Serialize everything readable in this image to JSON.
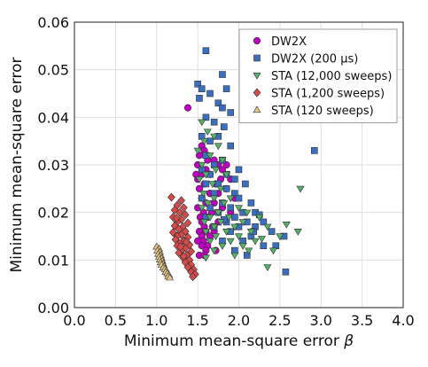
{
  "chart_data": {
    "type": "scatter",
    "title": "",
    "xlabel": "Minimum mean-square error",
    "xlabel_symbol": "β",
    "ylabel": "Minimum mean-square error",
    "xlim": [
      0.0,
      4.0
    ],
    "ylim": [
      0.0,
      0.06
    ],
    "x_ticks": [
      "0.0",
      "0.5",
      "1.0",
      "1.5",
      "2.0",
      "2.5",
      "3.0",
      "3.5",
      "4.0"
    ],
    "y_ticks": [
      "0.00",
      "0.01",
      "0.02",
      "0.03",
      "0.04",
      "0.05",
      "0.06"
    ],
    "grid": true,
    "legend_position": "top-right",
    "series": [
      {
        "name": "DW2X",
        "marker": "circle",
        "color": "#c000c0",
        "points": [
          [
            1.38,
            0.042
          ],
          [
            1.55,
            0.034
          ],
          [
            1.58,
            0.033
          ],
          [
            1.52,
            0.032
          ],
          [
            1.62,
            0.031
          ],
          [
            1.7,
            0.031
          ],
          [
            1.75,
            0.03
          ],
          [
            1.5,
            0.03
          ],
          [
            1.6,
            0.029
          ],
          [
            1.8,
            0.029
          ],
          [
            1.55,
            0.028
          ],
          [
            1.65,
            0.028
          ],
          [
            1.9,
            0.027
          ],
          [
            1.5,
            0.027
          ],
          [
            1.72,
            0.026
          ],
          [
            1.58,
            0.026
          ],
          [
            1.85,
            0.025
          ],
          [
            1.52,
            0.025
          ],
          [
            1.65,
            0.024
          ],
          [
            1.75,
            0.024
          ],
          [
            1.55,
            0.023
          ],
          [
            1.95,
            0.023
          ],
          [
            1.6,
            0.022
          ],
          [
            1.7,
            0.022
          ],
          [
            1.5,
            0.021
          ],
          [
            1.8,
            0.021
          ],
          [
            1.57,
            0.02
          ],
          [
            1.67,
            0.02
          ],
          [
            1.9,
            0.02
          ],
          [
            1.53,
            0.019
          ],
          [
            1.62,
            0.019
          ],
          [
            1.75,
            0.018
          ],
          [
            1.55,
            0.018
          ],
          [
            1.58,
            0.017
          ],
          [
            1.68,
            0.017
          ],
          [
            1.52,
            0.016
          ],
          [
            1.6,
            0.016
          ],
          [
            1.7,
            0.016
          ],
          [
            1.55,
            0.015
          ],
          [
            1.65,
            0.015
          ],
          [
            1.57,
            0.014
          ],
          [
            1.5,
            0.014
          ],
          [
            1.62,
            0.013
          ],
          [
            1.55,
            0.013
          ],
          [
            1.72,
            0.012
          ],
          [
            1.6,
            0.012
          ],
          [
            1.52,
            0.011
          ],
          [
            1.58,
            0.011
          ],
          [
            1.65,
            0.024
          ],
          [
            1.85,
            0.03
          ],
          [
            1.48,
            0.028
          ],
          [
            1.78,
            0.027
          ]
        ]
      },
      {
        "name": "DW2X (200 μs)",
        "marker": "square",
        "color": "#3a6fc0",
        "points": [
          [
            1.6,
            0.054
          ],
          [
            1.8,
            0.049
          ],
          [
            1.5,
            0.047
          ],
          [
            1.55,
            0.046
          ],
          [
            1.85,
            0.046
          ],
          [
            1.65,
            0.045
          ],
          [
            1.52,
            0.044
          ],
          [
            1.75,
            0.043
          ],
          [
            1.8,
            0.042
          ],
          [
            1.9,
            0.041
          ],
          [
            2.1,
            0.041
          ],
          [
            1.6,
            0.04
          ],
          [
            1.7,
            0.039
          ],
          [
            1.82,
            0.038
          ],
          [
            1.55,
            0.036
          ],
          [
            1.75,
            0.036
          ],
          [
            1.65,
            0.035
          ],
          [
            1.9,
            0.034
          ],
          [
            2.92,
            0.033
          ],
          [
            1.6,
            0.032
          ],
          [
            1.8,
            0.031
          ],
          [
            1.7,
            0.03
          ],
          [
            2.0,
            0.029
          ],
          [
            1.55,
            0.029
          ],
          [
            1.85,
            0.028
          ],
          [
            1.65,
            0.028
          ],
          [
            1.95,
            0.027
          ],
          [
            1.75,
            0.026
          ],
          [
            1.6,
            0.026
          ],
          [
            1.85,
            0.025
          ],
          [
            1.7,
            0.024
          ],
          [
            1.95,
            0.024
          ],
          [
            1.55,
            0.023
          ],
          [
            2.0,
            0.023
          ],
          [
            1.8,
            0.022
          ],
          [
            2.15,
            0.022
          ],
          [
            1.65,
            0.021
          ],
          [
            1.9,
            0.021
          ],
          [
            2.05,
            0.02
          ],
          [
            1.75,
            0.02
          ],
          [
            2.2,
            0.02
          ],
          [
            1.6,
            0.019
          ],
          [
            1.95,
            0.019
          ],
          [
            2.1,
            0.018
          ],
          [
            1.85,
            0.018
          ],
          [
            2.3,
            0.018
          ],
          [
            2.0,
            0.017
          ],
          [
            2.2,
            0.017
          ],
          [
            1.7,
            0.017
          ],
          [
            2.4,
            0.016
          ],
          [
            1.9,
            0.016
          ],
          [
            2.15,
            0.015
          ],
          [
            2.55,
            0.015
          ],
          [
            2.05,
            0.014
          ],
          [
            1.8,
            0.014
          ],
          [
            2.3,
            0.013
          ],
          [
            2.45,
            0.013
          ],
          [
            1.95,
            0.012
          ],
          [
            2.1,
            0.011
          ],
          [
            2.57,
            0.0075
          ],
          [
            1.82,
            0.0185
          ],
          [
            2.25,
            0.0195
          ],
          [
            2.18,
            0.016
          ],
          [
            2.08,
            0.026
          ]
        ]
      },
      {
        "name": "STA (12,000 sweeps)",
        "marker": "triangle-down",
        "color": "#55b068",
        "points": [
          [
            1.55,
            0.039
          ],
          [
            1.62,
            0.037
          ],
          [
            1.7,
            0.036
          ],
          [
            1.58,
            0.035
          ],
          [
            1.75,
            0.034
          ],
          [
            1.5,
            0.033
          ],
          [
            1.65,
            0.032
          ],
          [
            1.8,
            0.031
          ],
          [
            1.55,
            0.03
          ],
          [
            1.72,
            0.029
          ],
          [
            1.6,
            0.028
          ],
          [
            1.85,
            0.028
          ],
          [
            1.52,
            0.027
          ],
          [
            1.68,
            0.026
          ],
          [
            1.78,
            0.025
          ],
          [
            2.75,
            0.025
          ],
          [
            1.57,
            0.024
          ],
          [
            1.7,
            0.023
          ],
          [
            1.9,
            0.023
          ],
          [
            1.62,
            0.022
          ],
          [
            1.82,
            0.022
          ],
          [
            2.0,
            0.021
          ],
          [
            1.55,
            0.021
          ],
          [
            1.75,
            0.02
          ],
          [
            2.1,
            0.02
          ],
          [
            1.65,
            0.019
          ],
          [
            1.88,
            0.019
          ],
          [
            2.25,
            0.019
          ],
          [
            1.58,
            0.018
          ],
          [
            1.78,
            0.018
          ],
          [
            2.05,
            0.018
          ],
          [
            1.7,
            0.017
          ],
          [
            1.95,
            0.017
          ],
          [
            2.35,
            0.017
          ],
          [
            1.6,
            0.016
          ],
          [
            1.85,
            0.016
          ],
          [
            2.15,
            0.016
          ],
          [
            2.58,
            0.0175
          ],
          [
            1.72,
            0.015
          ],
          [
            2.0,
            0.015
          ],
          [
            2.5,
            0.015
          ],
          [
            2.72,
            0.016
          ],
          [
            1.65,
            0.014
          ],
          [
            1.9,
            0.014
          ],
          [
            2.2,
            0.014
          ],
          [
            1.8,
            0.013
          ],
          [
            2.05,
            0.013
          ],
          [
            2.42,
            0.012
          ],
          [
            1.7,
            0.012
          ],
          [
            1.95,
            0.011
          ],
          [
            2.35,
            0.0085
          ],
          [
            1.6,
            0.0105
          ],
          [
            2.12,
            0.012
          ],
          [
            2.28,
            0.0145
          ]
        ]
      },
      {
        "name": "STA (1,200 sweeps)",
        "marker": "diamond",
        "color": "#d64a4a",
        "points": [
          [
            1.18,
            0.0232
          ],
          [
            1.3,
            0.0225
          ],
          [
            1.25,
            0.0215
          ],
          [
            1.33,
            0.021
          ],
          [
            1.22,
            0.0205
          ],
          [
            1.28,
            0.02
          ],
          [
            1.35,
            0.0195
          ],
          [
            1.2,
            0.019
          ],
          [
            1.3,
            0.0185
          ],
          [
            1.25,
            0.018
          ],
          [
            1.38,
            0.0178
          ],
          [
            1.22,
            0.0172
          ],
          [
            1.32,
            0.017
          ],
          [
            1.27,
            0.0165
          ],
          [
            1.35,
            0.016
          ],
          [
            1.2,
            0.0158
          ],
          [
            1.3,
            0.0153
          ],
          [
            1.25,
            0.015
          ],
          [
            1.38,
            0.0148
          ],
          [
            1.23,
            0.0143
          ],
          [
            1.33,
            0.014
          ],
          [
            1.28,
            0.0135
          ],
          [
            1.4,
            0.0132
          ],
          [
            1.25,
            0.013
          ],
          [
            1.35,
            0.0125
          ],
          [
            1.3,
            0.012
          ],
          [
            1.42,
            0.0118
          ],
          [
            1.27,
            0.0115
          ],
          [
            1.37,
            0.011
          ],
          [
            1.32,
            0.0105
          ],
          [
            1.4,
            0.01
          ],
          [
            1.35,
            0.0095
          ],
          [
            1.42,
            0.009
          ],
          [
            1.38,
            0.0085
          ],
          [
            1.45,
            0.008
          ],
          [
            1.42,
            0.0075
          ],
          [
            1.47,
            0.007
          ],
          [
            1.44,
            0.0065
          ],
          [
            1.24,
            0.0188
          ],
          [
            1.36,
            0.0138
          ],
          [
            1.29,
            0.0128
          ],
          [
            1.33,
            0.0108
          ]
        ]
      },
      {
        "name": "STA (120 sweeps)",
        "marker": "triangle-up",
        "color": "#e8c88a",
        "points": [
          [
            1.0,
            0.0128
          ],
          [
            1.03,
            0.0124
          ],
          [
            1.01,
            0.012
          ],
          [
            1.04,
            0.0117
          ],
          [
            1.02,
            0.0113
          ],
          [
            1.05,
            0.011
          ],
          [
            1.03,
            0.0107
          ],
          [
            1.06,
            0.0104
          ],
          [
            1.04,
            0.0101
          ],
          [
            1.07,
            0.0098
          ],
          [
            1.05,
            0.0095
          ],
          [
            1.08,
            0.0092
          ],
          [
            1.06,
            0.009
          ],
          [
            1.09,
            0.0087
          ],
          [
            1.08,
            0.0084
          ],
          [
            1.1,
            0.0081
          ],
          [
            1.12,
            0.0078
          ],
          [
            1.11,
            0.0075
          ],
          [
            1.13,
            0.0072
          ],
          [
            1.15,
            0.0069
          ],
          [
            1.14,
            0.0066
          ],
          [
            1.16,
            0.0063
          ]
        ]
      }
    ]
  }
}
